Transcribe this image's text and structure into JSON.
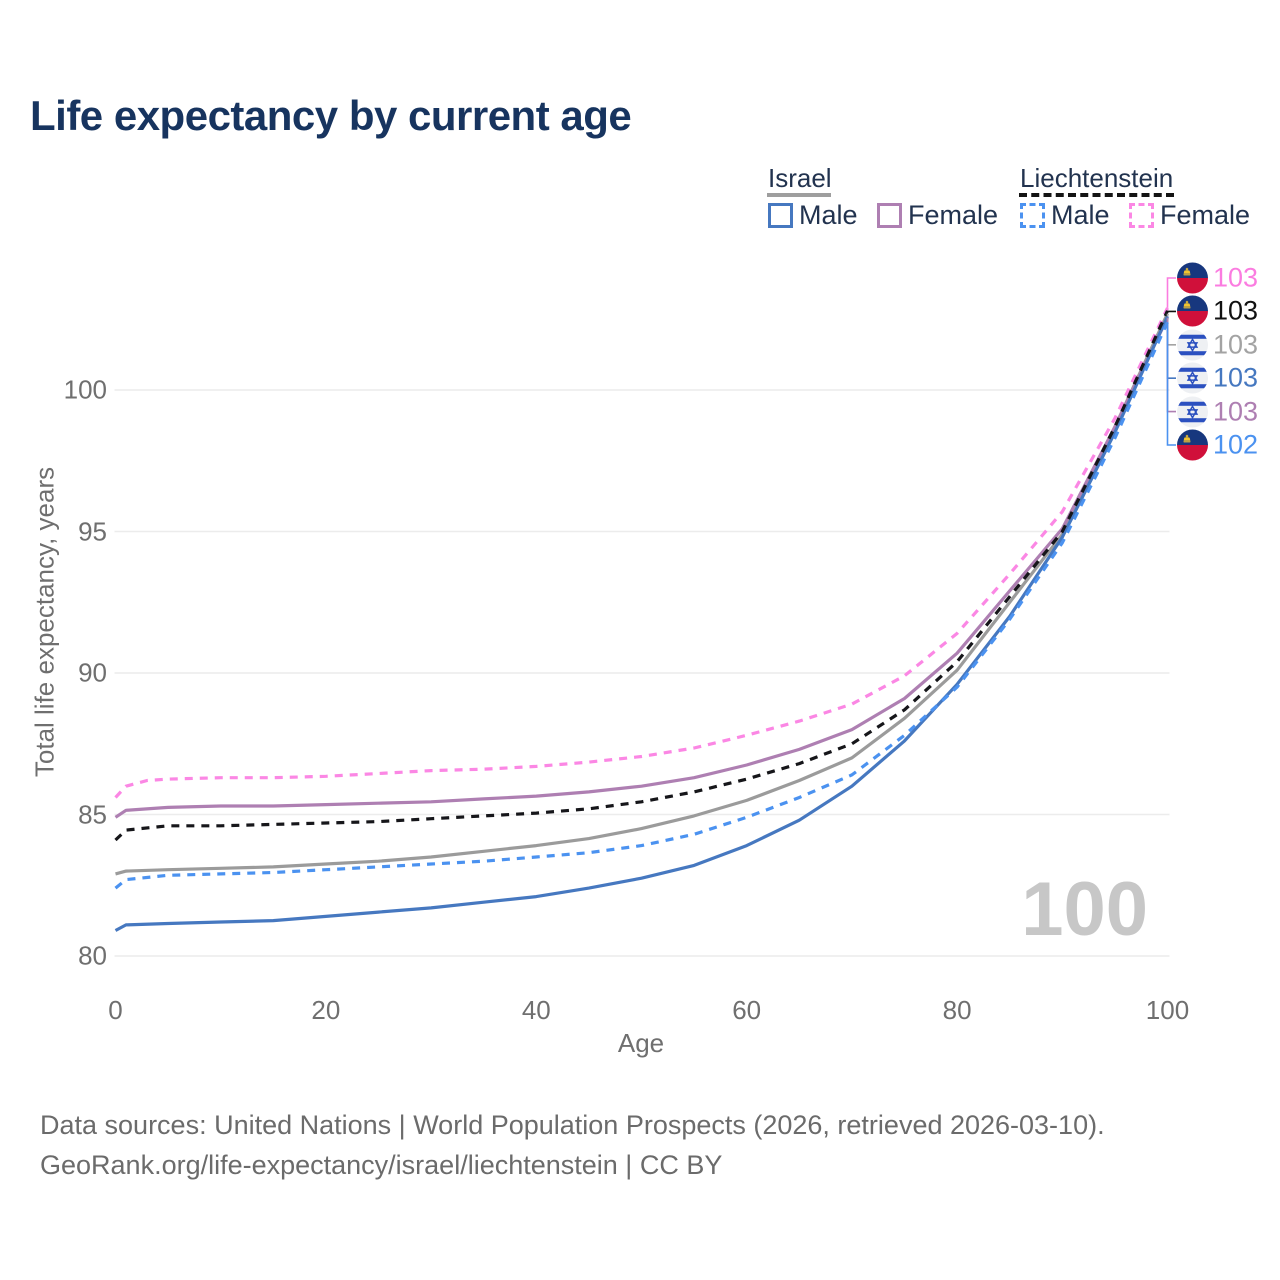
{
  "title": "Life expectancy by current age",
  "watermark": "100",
  "legend": {
    "groups": [
      {
        "name": "Israel",
        "line_style": "solid",
        "items": [
          {
            "label": "Male",
            "color": "#4678c0",
            "dashed": false
          },
          {
            "label": "Female",
            "color": "#ae7fb2",
            "dashed": false
          }
        ]
      },
      {
        "name": "Liechtenstein",
        "line_style": "dashed",
        "items": [
          {
            "label": "Male",
            "color": "#4b92f0",
            "dashed": true
          },
          {
            "label": "Female",
            "color": "#fb87e4",
            "dashed": true
          }
        ]
      }
    ]
  },
  "chart_data": {
    "type": "line",
    "title": "Life expectancy by current age",
    "xlabel": "Age",
    "ylabel": "Total life expectancy, years",
    "xlim": [
      0,
      100
    ],
    "ylim": [
      79,
      104
    ],
    "x_ticks": [
      0,
      20,
      40,
      60,
      80,
      100
    ],
    "y_ticks": [
      80,
      85,
      90,
      95,
      100
    ],
    "grid": "horizontal-only",
    "legend_position": "top-right",
    "series": [
      {
        "name": "Israel total",
        "country": "Israel",
        "sex": "both",
        "color": "#9b9b9b",
        "dashed": false,
        "end_label": "103",
        "points": [
          [
            0,
            82.9
          ],
          [
            1,
            83.0
          ],
          [
            5,
            83.05
          ],
          [
            10,
            83.1
          ],
          [
            15,
            83.15
          ],
          [
            20,
            83.25
          ],
          [
            25,
            83.35
          ],
          [
            30,
            83.5
          ],
          [
            35,
            83.7
          ],
          [
            40,
            83.9
          ],
          [
            45,
            84.15
          ],
          [
            50,
            84.5
          ],
          [
            55,
            84.95
          ],
          [
            60,
            85.5
          ],
          [
            65,
            86.2
          ],
          [
            70,
            87.0
          ],
          [
            75,
            88.4
          ],
          [
            80,
            90.1
          ],
          [
            85,
            92.5
          ],
          [
            90,
            94.9
          ],
          [
            95,
            98.7
          ],
          [
            100,
            102.7
          ]
        ]
      },
      {
        "name": "Israel female",
        "country": "Israel",
        "sex": "female",
        "color": "#ae7fb2",
        "dashed": false,
        "end_label": "103",
        "points": [
          [
            0,
            84.9
          ],
          [
            1,
            85.15
          ],
          [
            5,
            85.25
          ],
          [
            10,
            85.3
          ],
          [
            15,
            85.3
          ],
          [
            20,
            85.35
          ],
          [
            25,
            85.4
          ],
          [
            30,
            85.45
          ],
          [
            35,
            85.55
          ],
          [
            40,
            85.65
          ],
          [
            45,
            85.8
          ],
          [
            50,
            86.0
          ],
          [
            55,
            86.3
          ],
          [
            60,
            86.75
          ],
          [
            65,
            87.3
          ],
          [
            70,
            88.0
          ],
          [
            75,
            89.1
          ],
          [
            80,
            90.7
          ],
          [
            85,
            92.9
          ],
          [
            90,
            95.1
          ],
          [
            95,
            98.7
          ],
          [
            100,
            102.55
          ]
        ]
      },
      {
        "name": "Israel male",
        "country": "Israel",
        "sex": "male",
        "color": "#4678c0",
        "dashed": false,
        "end_label": "103",
        "points": [
          [
            0,
            80.9
          ],
          [
            1,
            81.1
          ],
          [
            5,
            81.15
          ],
          [
            10,
            81.2
          ],
          [
            15,
            81.25
          ],
          [
            20,
            81.4
          ],
          [
            25,
            81.55
          ],
          [
            30,
            81.7
          ],
          [
            35,
            81.9
          ],
          [
            40,
            82.1
          ],
          [
            45,
            82.4
          ],
          [
            50,
            82.75
          ],
          [
            55,
            83.2
          ],
          [
            60,
            83.9
          ],
          [
            65,
            84.8
          ],
          [
            70,
            86.0
          ],
          [
            75,
            87.6
          ],
          [
            80,
            89.6
          ],
          [
            85,
            92.0
          ],
          [
            90,
            94.8
          ],
          [
            95,
            98.5
          ],
          [
            100,
            102.6
          ]
        ]
      },
      {
        "name": "Liechtenstein female",
        "country": "Liechtenstein",
        "sex": "female",
        "color": "#fb87e4",
        "dashed": true,
        "end_label": "103",
        "points": [
          [
            0,
            85.6
          ],
          [
            1,
            86.0
          ],
          [
            3,
            86.2
          ],
          [
            5,
            86.25
          ],
          [
            10,
            86.3
          ],
          [
            15,
            86.3
          ],
          [
            20,
            86.35
          ],
          [
            25,
            86.45
          ],
          [
            30,
            86.55
          ],
          [
            35,
            86.6
          ],
          [
            40,
            86.7
          ],
          [
            45,
            86.85
          ],
          [
            50,
            87.05
          ],
          [
            55,
            87.35
          ],
          [
            60,
            87.8
          ],
          [
            65,
            88.3
          ],
          [
            70,
            88.9
          ],
          [
            75,
            89.9
          ],
          [
            80,
            91.4
          ],
          [
            85,
            93.5
          ],
          [
            90,
            95.7
          ],
          [
            95,
            99.0
          ],
          [
            100,
            102.9
          ]
        ]
      },
      {
        "name": "Liechtenstein total",
        "country": "Liechtenstein",
        "sex": "both",
        "color": "#16161a",
        "dashed": true,
        "end_label": "103",
        "points": [
          [
            0,
            84.1
          ],
          [
            1,
            84.45
          ],
          [
            5,
            84.6
          ],
          [
            10,
            84.6
          ],
          [
            15,
            84.65
          ],
          [
            20,
            84.7
          ],
          [
            25,
            84.75
          ],
          [
            30,
            84.85
          ],
          [
            35,
            84.95
          ],
          [
            40,
            85.05
          ],
          [
            45,
            85.2
          ],
          [
            50,
            85.45
          ],
          [
            55,
            85.8
          ],
          [
            60,
            86.25
          ],
          [
            65,
            86.8
          ],
          [
            70,
            87.5
          ],
          [
            75,
            88.7
          ],
          [
            80,
            90.4
          ],
          [
            85,
            92.7
          ],
          [
            90,
            95.0
          ],
          [
            95,
            98.7
          ],
          [
            100,
            102.8
          ]
        ]
      },
      {
        "name": "Liechtenstein male",
        "country": "Liechtenstein",
        "sex": "male",
        "color": "#4b92f0",
        "dashed": true,
        "end_label": "102",
        "points": [
          [
            0,
            82.4
          ],
          [
            1,
            82.7
          ],
          [
            5,
            82.85
          ],
          [
            10,
            82.9
          ],
          [
            15,
            82.95
          ],
          [
            20,
            83.05
          ],
          [
            25,
            83.15
          ],
          [
            30,
            83.25
          ],
          [
            35,
            83.35
          ],
          [
            40,
            83.5
          ],
          [
            45,
            83.65
          ],
          [
            50,
            83.9
          ],
          [
            55,
            84.3
          ],
          [
            60,
            84.9
          ],
          [
            65,
            85.6
          ],
          [
            70,
            86.4
          ],
          [
            75,
            87.8
          ],
          [
            80,
            89.5
          ],
          [
            85,
            91.9
          ],
          [
            90,
            94.6
          ],
          [
            95,
            98.3
          ],
          [
            100,
            102.4
          ]
        ]
      }
    ]
  },
  "end_labels": [
    {
      "flag": "liechtenstein",
      "series": "Liechtenstein female",
      "value": "103",
      "color": "#fb7ce0"
    },
    {
      "flag": "liechtenstein",
      "series": "Liechtenstein total",
      "value": "103",
      "color": "#111111"
    },
    {
      "flag": "israel",
      "series": "Israel total",
      "value": "103",
      "color": "#a3a3a3"
    },
    {
      "flag": "israel",
      "series": "Israel male",
      "value": "103",
      "color": "#4678c0"
    },
    {
      "flag": "israel",
      "series": "Israel female",
      "value": "103",
      "color": "#ae7fb2"
    },
    {
      "flag": "liechtenstein",
      "series": "Liechtenstein male",
      "value": "102",
      "color": "#4b92f0"
    }
  ],
  "footer": {
    "line1": "Data sources: United Nations | World Population Prospects (2026, retrieved 2026-03-10).",
    "line2": "GeoRank.org/life-expectancy/israel/liechtenstein | CC BY"
  },
  "colors": {
    "title": "#17345f",
    "axis_text": "#6f6f6f",
    "gridline": "#ececec",
    "watermark": "#c7c7c7",
    "israel_underline": "#9e9e9e",
    "liechtenstein_underline": "#141414"
  }
}
